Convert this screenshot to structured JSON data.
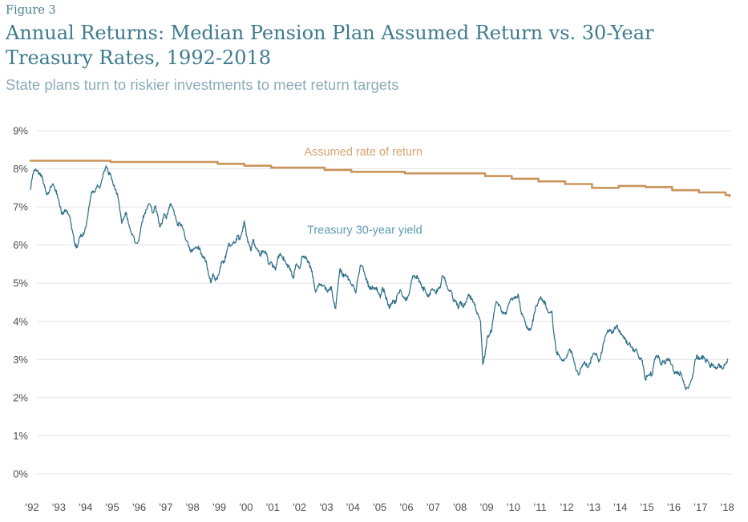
{
  "header": {
    "figure_label": "Figure 3",
    "title": "Annual Returns: Median Pension Plan Assumed Return vs. 30-Year Treasury Rates, 1992-2018",
    "subtitle": "State plans turn to riskier investments to meet return targets"
  },
  "chart_data": {
    "type": "line",
    "title": "Annual Returns: Median Pension Plan Assumed Return vs. 30-Year Treasury Rates, 1992-2018",
    "subtitle": "State plans turn to riskier investments to meet return targets",
    "xlabel": "",
    "ylabel": "",
    "ylim": [
      0,
      9
    ],
    "grid": "horizontal-only",
    "legend": "inline-labels",
    "y_tick_labels": [
      "0%",
      "1%",
      "2%",
      "3%",
      "4%",
      "5%",
      "6%",
      "7%",
      "8%",
      "9%"
    ],
    "x_tick_labels": [
      "’92",
      "’93",
      "’94",
      "’95",
      "’96",
      "’97",
      "’98",
      "’99",
      "’00",
      "’01",
      "’02",
      "’03",
      "’04",
      "’05",
      "’06",
      "’07",
      "’08",
      "’09",
      "’10",
      "’11",
      "’12",
      "’13",
      "’14",
      "’15",
      "’16",
      "’17",
      "’18"
    ],
    "colors": {
      "grid": "#e3e3e3",
      "axis_text": "#4d4d4d",
      "assumed_line": "#c9955c",
      "assumed_label": "#d8a470",
      "treasury_line": "#2e6f88",
      "treasury_label": "#5f9bb2"
    },
    "series": [
      {
        "name": "Assumed rate of return",
        "style": "step",
        "color": "#c9955c",
        "label_color": "#d8a470",
        "points": [
          [
            1992.0,
            8.21
          ],
          [
            1995.0,
            8.18
          ],
          [
            1999.0,
            8.13
          ],
          [
            2000.0,
            8.08
          ],
          [
            2001.0,
            8.03
          ],
          [
            2003.0,
            7.97
          ],
          [
            2004.0,
            7.92
          ],
          [
            2006.0,
            7.88
          ],
          [
            2009.0,
            7.81
          ],
          [
            2010.0,
            7.74
          ],
          [
            2011.0,
            7.67
          ],
          [
            2012.0,
            7.6
          ],
          [
            2013.0,
            7.5
          ],
          [
            2014.0,
            7.55
          ],
          [
            2015.0,
            7.52
          ],
          [
            2016.0,
            7.44
          ],
          [
            2017.0,
            7.38
          ],
          [
            2018.0,
            7.31
          ],
          [
            2018.15,
            7.28
          ]
        ]
      },
      {
        "name": "Treasury 30-year yield",
        "style": "line",
        "color": "#2e6f88",
        "label_color": "#5f9bb2",
        "start_year": 1992,
        "frequency": "monthly",
        "values": [
          7.45,
          7.85,
          7.97,
          7.96,
          7.89,
          7.84,
          7.6,
          7.39,
          7.34,
          7.53,
          7.61,
          7.44,
          7.34,
          7.09,
          6.82,
          6.85,
          6.92,
          6.81,
          6.63,
          6.32,
          6.0,
          5.94,
          6.21,
          6.25,
          6.29,
          6.49,
          6.91,
          7.27,
          7.41,
          7.4,
          7.58,
          7.49,
          7.71,
          7.94,
          8.08,
          7.87,
          7.85,
          7.61,
          7.45,
          7.36,
          6.95,
          6.57,
          6.72,
          6.86,
          6.55,
          6.37,
          6.26,
          6.06,
          6.05,
          6.24,
          6.6,
          6.79,
          6.93,
          7.06,
          7.03,
          6.84,
          7.03,
          6.81,
          6.48,
          6.55,
          6.83,
          6.69,
          6.93,
          7.09,
          6.94,
          6.77,
          6.51,
          6.58,
          6.5,
          6.33,
          6.11,
          5.99,
          5.81,
          5.89,
          5.95,
          5.92,
          5.93,
          5.7,
          5.68,
          5.54,
          5.2,
          5.01,
          5.25,
          5.06,
          5.16,
          5.37,
          5.58,
          5.55,
          5.81,
          6.04,
          5.98,
          6.07,
          6.07,
          6.26,
          6.15,
          6.35,
          6.63,
          6.23,
          6.05,
          5.85,
          6.15,
          5.93,
          5.85,
          5.72,
          5.83,
          5.8,
          5.78,
          5.49,
          5.54,
          5.45,
          5.34,
          5.65,
          5.78,
          5.67,
          5.61,
          5.48,
          5.48,
          5.32,
          5.12,
          5.48,
          5.45,
          5.4,
          5.71,
          5.67,
          5.64,
          5.52,
          5.38,
          5.08,
          4.76,
          4.93,
          4.95,
          4.92,
          4.94,
          4.81,
          4.82,
          4.91,
          4.52,
          4.34,
          4.92,
          5.39,
          5.21,
          5.21,
          5.17,
          5.11,
          4.96,
          4.93,
          4.74,
          5.16,
          5.46,
          5.45,
          5.24,
          5.07,
          4.89,
          4.85,
          4.89,
          4.88,
          4.77,
          4.61,
          4.89,
          4.75,
          4.56,
          4.35,
          4.48,
          4.53,
          4.51,
          4.74,
          4.83,
          4.66,
          4.59,
          4.58,
          4.73,
          5.06,
          5.2,
          5.15,
          5.13,
          5.0,
          4.85,
          4.85,
          4.69,
          4.68,
          4.85,
          4.82,
          4.72,
          4.87,
          4.9,
          5.2,
          5.11,
          4.93,
          4.79,
          4.77,
          4.52,
          4.53,
          4.33,
          4.52,
          4.39,
          4.44,
          4.6,
          4.69,
          4.57,
          4.5,
          4.27,
          4.17,
          4.0,
          2.87,
          3.13,
          3.59,
          3.64,
          3.76,
          4.23,
          4.52,
          4.41,
          4.37,
          4.19,
          4.19,
          4.31,
          4.49,
          4.6,
          4.62,
          4.64,
          4.69,
          4.29,
          4.13,
          3.99,
          3.8,
          3.77,
          3.87,
          4.19,
          4.42,
          4.52,
          4.65,
          4.51,
          4.5,
          4.29,
          4.23,
          4.27,
          3.65,
          3.18,
          3.13,
          3.02,
          2.98,
          3.03,
          3.11,
          3.28,
          3.18,
          2.93,
          2.7,
          2.59,
          2.77,
          2.88,
          2.9,
          2.8,
          2.88,
          3.08,
          3.17,
          3.16,
          2.93,
          3.11,
          3.4,
          3.61,
          3.76,
          3.79,
          3.68,
          3.8,
          3.89,
          3.77,
          3.66,
          3.62,
          3.52,
          3.39,
          3.42,
          3.33,
          3.2,
          3.26,
          3.04,
          3.04,
          2.83,
          2.46,
          2.57,
          2.63,
          2.59,
          2.96,
          3.11,
          3.07,
          2.86,
          2.95,
          2.89,
          3.03,
          2.97,
          2.86,
          2.62,
          2.68,
          2.62,
          2.63,
          2.45,
          2.23,
          2.26,
          2.35,
          2.5,
          2.86,
          3.11,
          3.02,
          3.03,
          3.08,
          2.94,
          2.96,
          2.8,
          2.88,
          2.8,
          2.78,
          2.88,
          2.8,
          2.77,
          2.88,
          3.02
        ]
      }
    ]
  }
}
